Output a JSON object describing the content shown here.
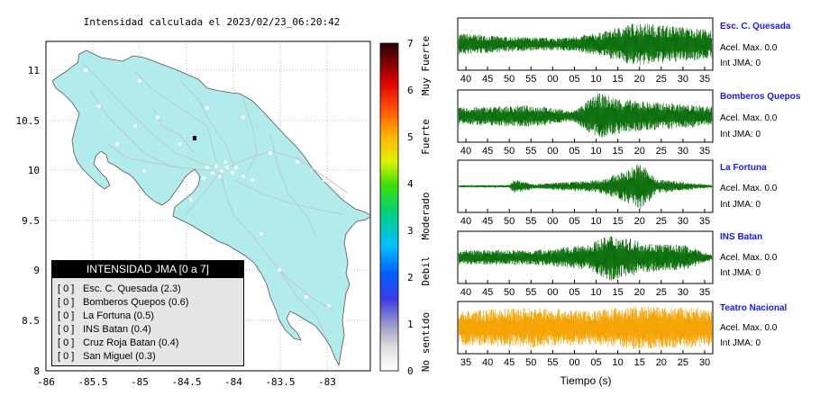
{
  "map": {
    "title": "Intensidad calculada el 2023/02/23_06:20:42",
    "x_ticks": [
      "-86",
      "-85.5",
      "-85",
      "-84.5",
      "-84",
      "-83.5",
      "-83"
    ],
    "y_ticks": [
      "11",
      "10.5",
      "10",
      "9.5",
      "9",
      "8.5",
      "8"
    ],
    "land_color": "#b2ebeb",
    "road_color": "#bfbfbf"
  },
  "colorbar": {
    "ticks": [
      "0",
      "1",
      "2",
      "3",
      "4",
      "5",
      "6",
      "7"
    ],
    "labels": [
      "No sentido",
      "Debil",
      "Moderado",
      "Fuerte",
      "Muy Fuerte"
    ]
  },
  "legend": {
    "title": "INTENSIDAD JMA [0 a 7]",
    "rows": [
      {
        "bracket": "[ 0 ]",
        "text": "Esc. C. Quesada (2.3)"
      },
      {
        "bracket": "[ 0 ]",
        "text": "Bomberos Quepos (0.6)"
      },
      {
        "bracket": "[ 0 ]",
        "text": "La Fortuna (0.5)"
      },
      {
        "bracket": "[ 0 ]",
        "text": "INS Batan (0.4)"
      },
      {
        "bracket": "[ 0 ]",
        "text": "Cruz Roja Batan (0.4)"
      },
      {
        "bracket": "[ 0 ]",
        "text": "San Miguel (0.3)"
      }
    ]
  },
  "waveforms": {
    "panels": [
      {
        "name": "Esc. C. Quesada",
        "acel": "Acel. Max. 0.0",
        "jma": "Int JMA: 0",
        "ticks": [
          "40",
          "45",
          "50",
          "55",
          "00",
          "05",
          "10",
          "15",
          "20",
          "25",
          "30",
          "35"
        ],
        "color": "#0a6e0a"
      },
      {
        "name": "Bomberos Quepos",
        "acel": "Acel. Max. 0.0",
        "jma": "Int JMA: 0",
        "ticks": [
          "40",
          "45",
          "50",
          "55",
          "00",
          "05",
          "10",
          "15",
          "20",
          "25",
          "30",
          "35"
        ],
        "color": "#0a6e0a"
      },
      {
        "name": "La Fortuna",
        "acel": "Acel. Max. 0.0",
        "jma": "Int JMA: 0",
        "ticks": [
          "40",
          "45",
          "50",
          "55",
          "00",
          "05",
          "10",
          "15",
          "20",
          "25",
          "30",
          "35"
        ],
        "color": "#0a6e0a"
      },
      {
        "name": "INS Batan",
        "acel": "Acel. Max. 0.0",
        "jma": "Int JMA: 0",
        "ticks": [
          "40",
          "45",
          "50",
          "55",
          "00",
          "05",
          "10",
          "15",
          "20",
          "25",
          "30",
          "35"
        ],
        "color": "#0a6e0a"
      },
      {
        "name": "Teatro Nacional",
        "acel": "Acel. Max. 0.0",
        "jma": "Int JMA: 0",
        "ticks": [
          "35",
          "40",
          "45",
          "50",
          "55",
          "00",
          "05",
          "10",
          "15",
          "20",
          "25",
          "30"
        ],
        "color": "#f5a300"
      }
    ],
    "xlabel": "Tiempo (s)"
  }
}
